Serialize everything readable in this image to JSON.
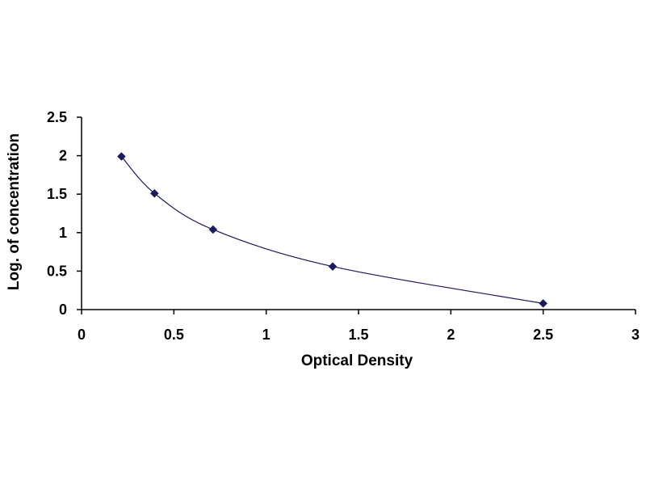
{
  "chart_data": {
    "type": "scatter",
    "title": "",
    "xlabel": "Optical Density",
    "ylabel": "Log. of concentration",
    "xlim": [
      0,
      3
    ],
    "ylim": [
      0,
      2.5
    ],
    "x_ticks": [
      "0",
      "0.5",
      "1",
      "1.5",
      "2",
      "2.5",
      "3"
    ],
    "y_ticks": [
      "0",
      "0.5",
      "1",
      "1.5",
      "2",
      "2.5"
    ],
    "grid": false,
    "legend": "none",
    "trendline": "smooth curve through points",
    "series": [
      {
        "color": "#1a1a5e",
        "marker": "diamond",
        "x": [
          0.216,
          0.395,
          0.712,
          1.36,
          2.5
        ],
        "y": [
          1.99,
          1.51,
          1.04,
          0.56,
          0.08
        ]
      }
    ]
  }
}
